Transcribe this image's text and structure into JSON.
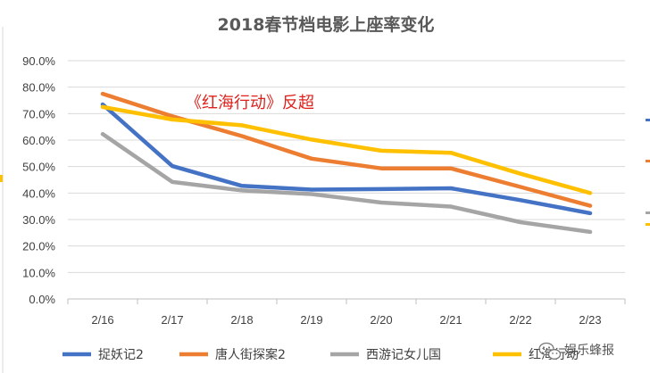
{
  "chart_data": {
    "type": "line",
    "title": "2018春节档电影上座率变化",
    "categories": [
      "2/16",
      "2/17",
      "2/18",
      "2/19",
      "2/20",
      "2/21",
      "2/22",
      "2/23"
    ],
    "ylim": [
      0,
      90
    ],
    "y_ticks": [
      "0.0%",
      "10.0%",
      "20.0%",
      "30.0%",
      "40.0%",
      "50.0%",
      "60.0%",
      "70.0%",
      "80.0%",
      "90.0%"
    ],
    "xlabel": "",
    "ylabel": "",
    "grid": true,
    "legend_position": "bottom",
    "series": [
      {
        "name": "捉妖记2",
        "color": "#4472c4",
        "values": [
          73.5,
          50.2,
          42.7,
          41.3,
          41.5,
          41.8,
          37.3,
          32.4
        ]
      },
      {
        "name": "唐人街探案2",
        "color": "#ed7d31",
        "values": [
          77.5,
          69.0,
          61.5,
          53.0,
          49.3,
          49.3,
          42.3,
          35.2
        ]
      },
      {
        "name": "西游记女儿国",
        "color": "#a5a5a5",
        "values": [
          62.3,
          44.2,
          41.0,
          39.6,
          36.4,
          34.9,
          29.0,
          25.3
        ]
      },
      {
        "name": "红海行动",
        "color": "#ffc000",
        "values": [
          72.5,
          67.8,
          65.6,
          60.2,
          56.0,
          55.2,
          47.3,
          40.0
        ]
      }
    ],
    "annotation": "《红海行动》反超"
  },
  "watermark": {
    "text": "娱乐蜂报",
    "icon": "wechat-icon"
  },
  "colors": {
    "axis": "#bfbfbf",
    "grid": "#d9d9d9",
    "annotation": "#e0201b"
  }
}
